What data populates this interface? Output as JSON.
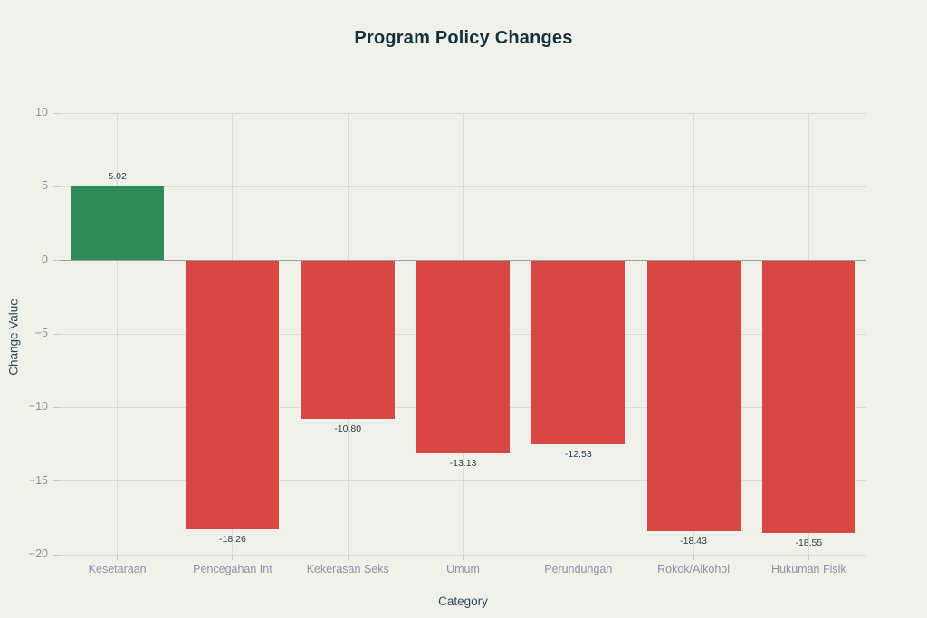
{
  "page": {
    "background": "#f1f1eb"
  },
  "chart_data": {
    "type": "bar",
    "title": "Program Policy Changes",
    "xlabel": "Category",
    "ylabel": "Change Value",
    "categories": [
      "Kesetaraan",
      "Pencegahan Int",
      "Kekerasan Seks",
      "Umum",
      "Perundungan",
      "Rokok/Alkohol",
      "Hukuman Fisik"
    ],
    "values": [
      5.02,
      -18.26,
      -10.8,
      -13.13,
      -12.53,
      -18.43,
      -18.55
    ],
    "bar_labels": [
      "5.02",
      "-18.26",
      "-10.80",
      "-13.13",
      "-12.53",
      "-18.43",
      "-18.55"
    ],
    "ylim": [
      -20,
      10
    ],
    "yticks": [
      10,
      5,
      0,
      -5,
      -10,
      -15,
      -20
    ],
    "ytick_labels": [
      "10",
      "5",
      "0",
      "−5",
      "−10",
      "−15",
      "−20"
    ],
    "grid": true,
    "legend_position": "none",
    "colors": {
      "positive_bar": "#2e8a56",
      "negative_bar": "#d84744",
      "background": "#f1f1eb",
      "gridline": "#dcdbd3",
      "zero_line": "#9e9e96",
      "tick_mark": "#c9c8c0",
      "title_text": "#14313c",
      "axis_title_text": "#2e4a57",
      "tick_label_text": "#8d939c",
      "value_label_text": "#26414d"
    }
  }
}
